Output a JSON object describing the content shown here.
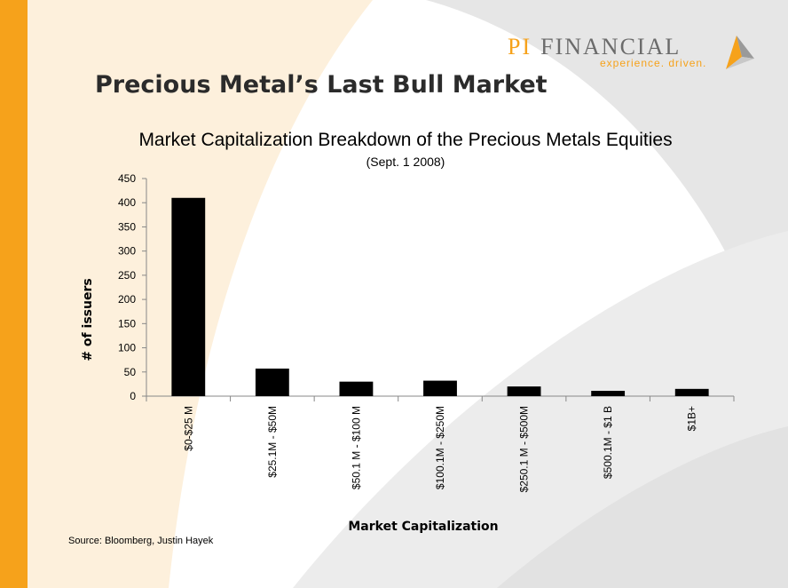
{
  "slide": {
    "title": "Precious Metal’s Last Bull Market",
    "source": "Source: Bloomberg, Justin Hayek"
  },
  "logo": {
    "pi": "PI",
    "name": "FINANCIAL",
    "tagline": "experience. driven."
  },
  "colors": {
    "accent": "#f6a21b",
    "bars": "#000000"
  },
  "chart_data": {
    "type": "bar",
    "title": "Market Capitalization Breakdown of the Precious Metals Equities",
    "subtitle": "(Sept. 1 2008)",
    "xlabel": "Market Capitalization",
    "ylabel": "# of issuers",
    "categories": [
      "$0-$25 M",
      "$25.1M - $50M",
      "$50.1 M - $100 M",
      "$100.1M - $250M",
      "$250.1 M - $500M",
      "$500.1M - $1 B",
      "$1B+"
    ],
    "values": [
      410,
      57,
      30,
      32,
      20,
      11,
      15
    ],
    "ylim": [
      0,
      450
    ],
    "yticks": [
      "0",
      "50",
      "100",
      "150",
      "200",
      "250",
      "300",
      "350",
      "400",
      "450"
    ],
    "grid": false,
    "legend": "none"
  }
}
